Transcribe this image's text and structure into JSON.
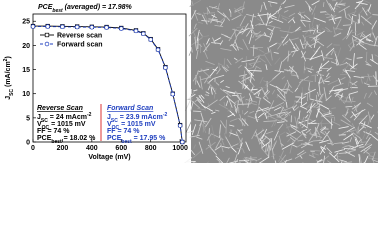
{
  "chart_data": {
    "type": "line",
    "title": [
      {
        "text": "PCE"
      },
      {
        "text": "best",
        "sub": true
      },
      {
        "text": " (averaged) = 17.98%"
      }
    ],
    "xlabel": [
      {
        "text": "Voltage (mV)"
      }
    ],
    "ylabel": [
      {
        "text": "J"
      },
      {
        "text": "SC",
        "sub": true
      },
      {
        "text": " (mA/cm"
      },
      {
        "text": "2",
        "sup": true
      },
      {
        "text": ")"
      }
    ],
    "x": [
      0,
      100,
      200,
      300,
      400,
      500,
      600,
      700,
      750,
      800,
      850,
      900,
      950,
      1000,
      1015
    ],
    "series": [
      {
        "name": "Reverse scan",
        "color": "#000000",
        "marker": "square",
        "dash": false,
        "values": [
          24.0,
          24.0,
          23.95,
          23.9,
          23.85,
          23.8,
          23.6,
          23.1,
          22.5,
          21.3,
          19.2,
          15.5,
          10.0,
          3.5,
          0
        ]
      },
      {
        "name": "Forward scan",
        "color": "#1f3fbf",
        "marker": "circle",
        "dash": true,
        "values": [
          23.9,
          23.9,
          23.85,
          23.8,
          23.75,
          23.7,
          23.5,
          23.0,
          22.4,
          21.2,
          19.1,
          15.4,
          9.9,
          3.4,
          0
        ]
      }
    ],
    "xlim": [
      0,
      1040
    ],
    "xticks": [
      0,
      200,
      400,
      600,
      800,
      1000
    ],
    "ylim": [
      0,
      26.5
    ],
    "yticks": [
      0,
      5,
      10,
      15,
      20,
      25
    ],
    "legend": "upper left",
    "annotations": [
      {
        "heading": "Reverse Scan",
        "color": "#000000",
        "lines": [
          [
            {
              "text": "J"
            },
            {
              "text": "SC",
              "sub": true
            },
            {
              "text": " = 24 mAcm"
            },
            {
              "text": "-2",
              "sup": true
            }
          ],
          [
            {
              "text": "V"
            },
            {
              "text": "OC",
              "sub": true
            },
            {
              "text": " = 1015 mV"
            }
          ],
          [
            {
              "text": "FF = 74 %"
            }
          ],
          [
            {
              "text": "PCE"
            },
            {
              "text": "best",
              "sub": true
            },
            {
              "text": " = 18.02 %"
            }
          ]
        ]
      },
      {
        "heading": "Forward Scan",
        "color": "#1f3fbf",
        "lines": [
          [
            {
              "text": "J"
            },
            {
              "text": "SC",
              "sub": true
            },
            {
              "text": " = 23.9 mAcm"
            },
            {
              "text": "-2",
              "sup": true
            }
          ],
          [
            {
              "text": "V"
            },
            {
              "text": "OC",
              "sub": true
            },
            {
              "text": " = 1015 mV"
            }
          ],
          [
            {
              "text": "FF = 74 %"
            }
          ],
          [
            {
              "text": "PCE"
            },
            {
              "text": "best",
              "sub": true
            },
            {
              "text": " = 17.95 %"
            }
          ]
        ]
      }
    ]
  }
}
